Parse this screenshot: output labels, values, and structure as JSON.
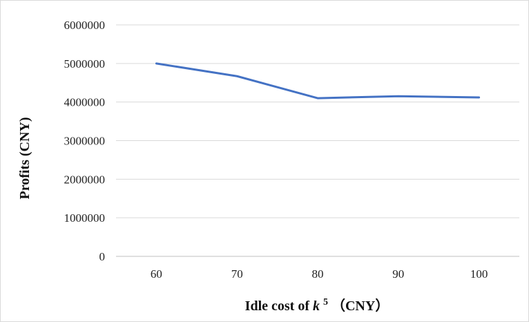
{
  "chart_data": {
    "type": "line",
    "categories": [
      "60",
      "70",
      "80",
      "90",
      "100"
    ],
    "series": [
      {
        "values": [
          5000000,
          4670000,
          4100000,
          4150000,
          4120000
        ],
        "color": "#4472c4"
      }
    ],
    "y_ticks": [
      "0",
      "1000000",
      "2000000",
      "3000000",
      "4000000",
      "5000000",
      "6000000"
    ],
    "ylim": [
      0,
      6000000
    ],
    "xlabel": {
      "prefix": "Idle cost of ",
      "var": "k",
      "sup": "5",
      "suffix": "（CNY）"
    },
    "ylabel": "Profits (CNY)",
    "grid": {
      "horizontal": true,
      "color": "#d9d9d9"
    },
    "legend": "none"
  }
}
